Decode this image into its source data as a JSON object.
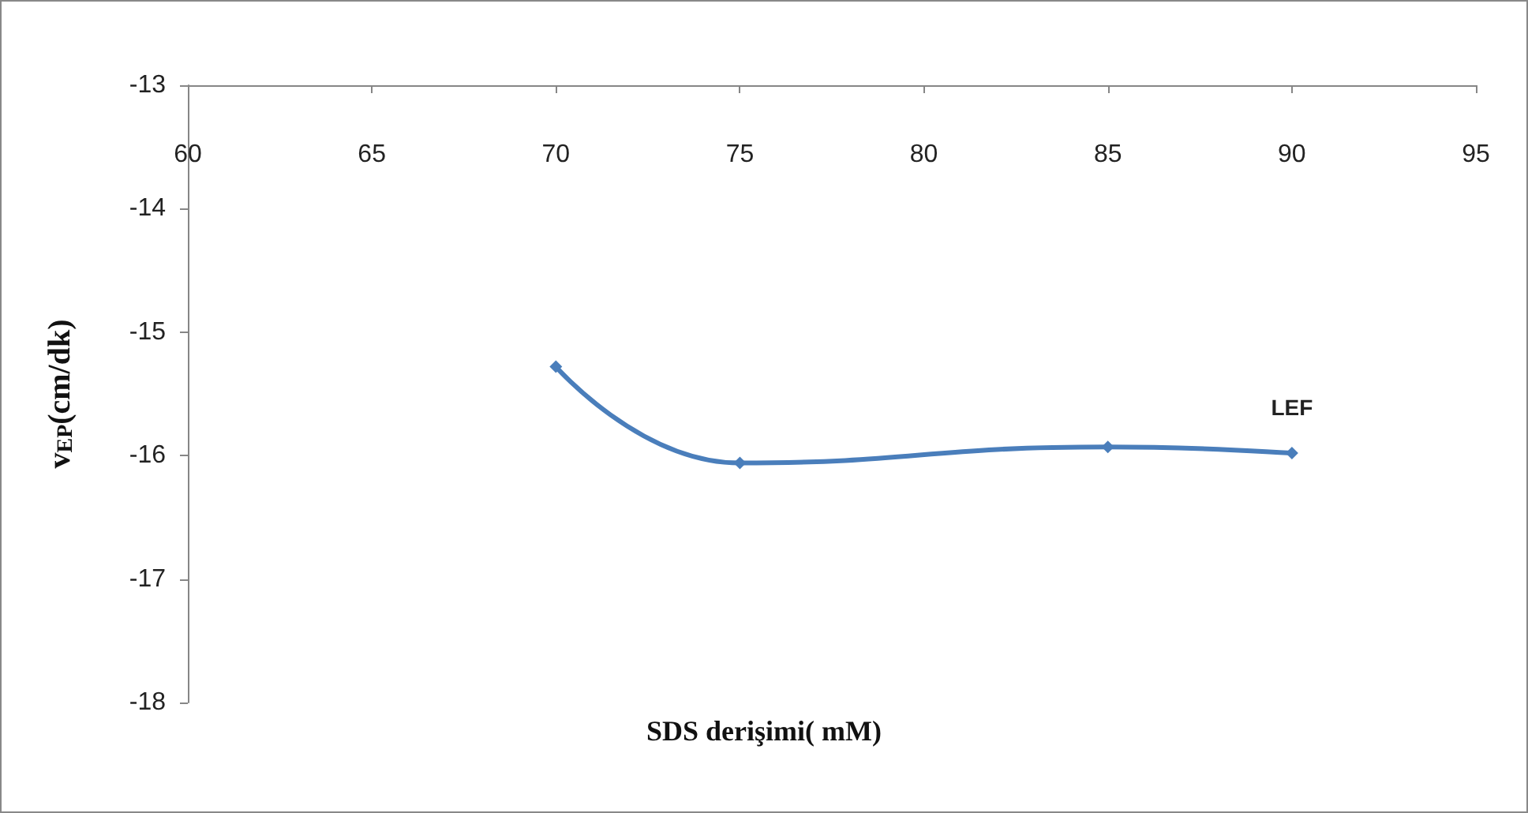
{
  "chart_data": {
    "type": "line",
    "xlabel": "SDS derişimi( mM)",
    "ylabel": "v$_{EP}$(cm/dk)",
    "x": [
      70,
      75,
      85,
      90
    ],
    "series": [
      {
        "color": "#4a7ebb",
        "values": [
          -15.28,
          -16.06,
          -15.93,
          -15.98
        ]
      }
    ],
    "xlim": [
      60,
      95
    ],
    "xticks": [
      60,
      65,
      70,
      75,
      80,
      85,
      90,
      95
    ],
    "ylim": [
      -18,
      -13
    ],
    "yticks": [
      -18,
      -17,
      -16,
      -15,
      -14,
      -13
    ],
    "annotations": [
      {
        "text": "LEF",
        "x": 90,
        "y": -15.98
      }
    ],
    "marker": "diamond",
    "line_style": "solid",
    "grid": false
  }
}
